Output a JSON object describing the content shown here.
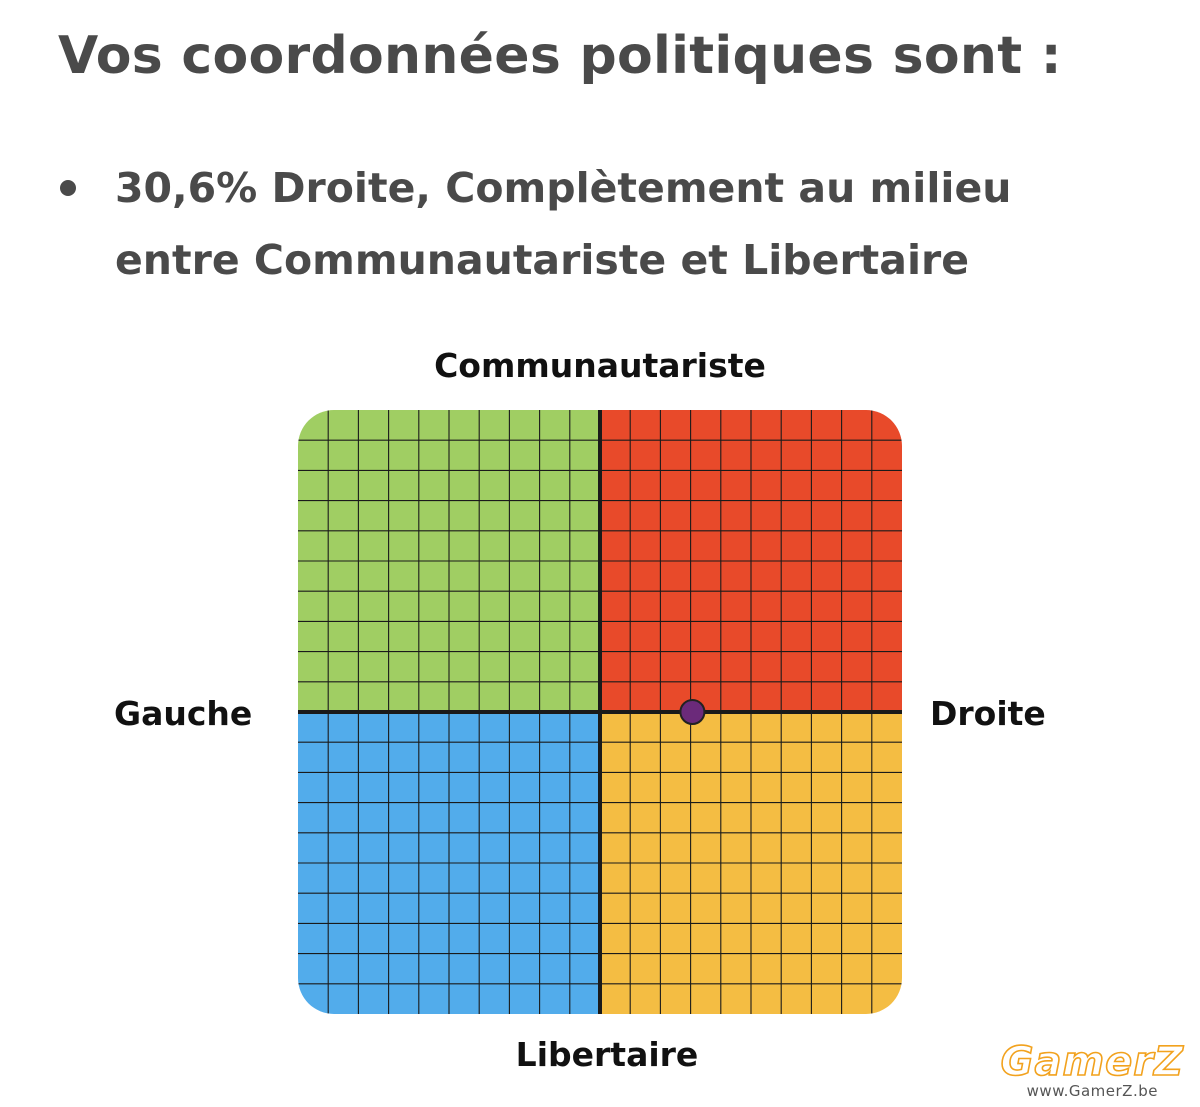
{
  "page": {
    "title": "Vos coordonnées politiques sont :",
    "result_text": "30,6% Droite, Complètement au milieu entre Communautariste et Libertaire"
  },
  "compass": {
    "labels": {
      "top": "Communautariste",
      "bottom": "Libertaire",
      "left": "Gauche",
      "right": "Droite"
    },
    "position": {
      "economic_right_percent": 30.6,
      "social_percent": 0
    },
    "grid_cells_per_side": 20,
    "colors": {
      "top_left": "#a0ce63",
      "top_right": "#e84a2a",
      "bottom_left": "#52aceb",
      "bottom_right": "#f4bd43",
      "grid": "#1a1a1a",
      "marker": "#6b2a7a"
    }
  },
  "watermark": {
    "logo": "GamerZ",
    "url": "www.GamerZ.be"
  }
}
